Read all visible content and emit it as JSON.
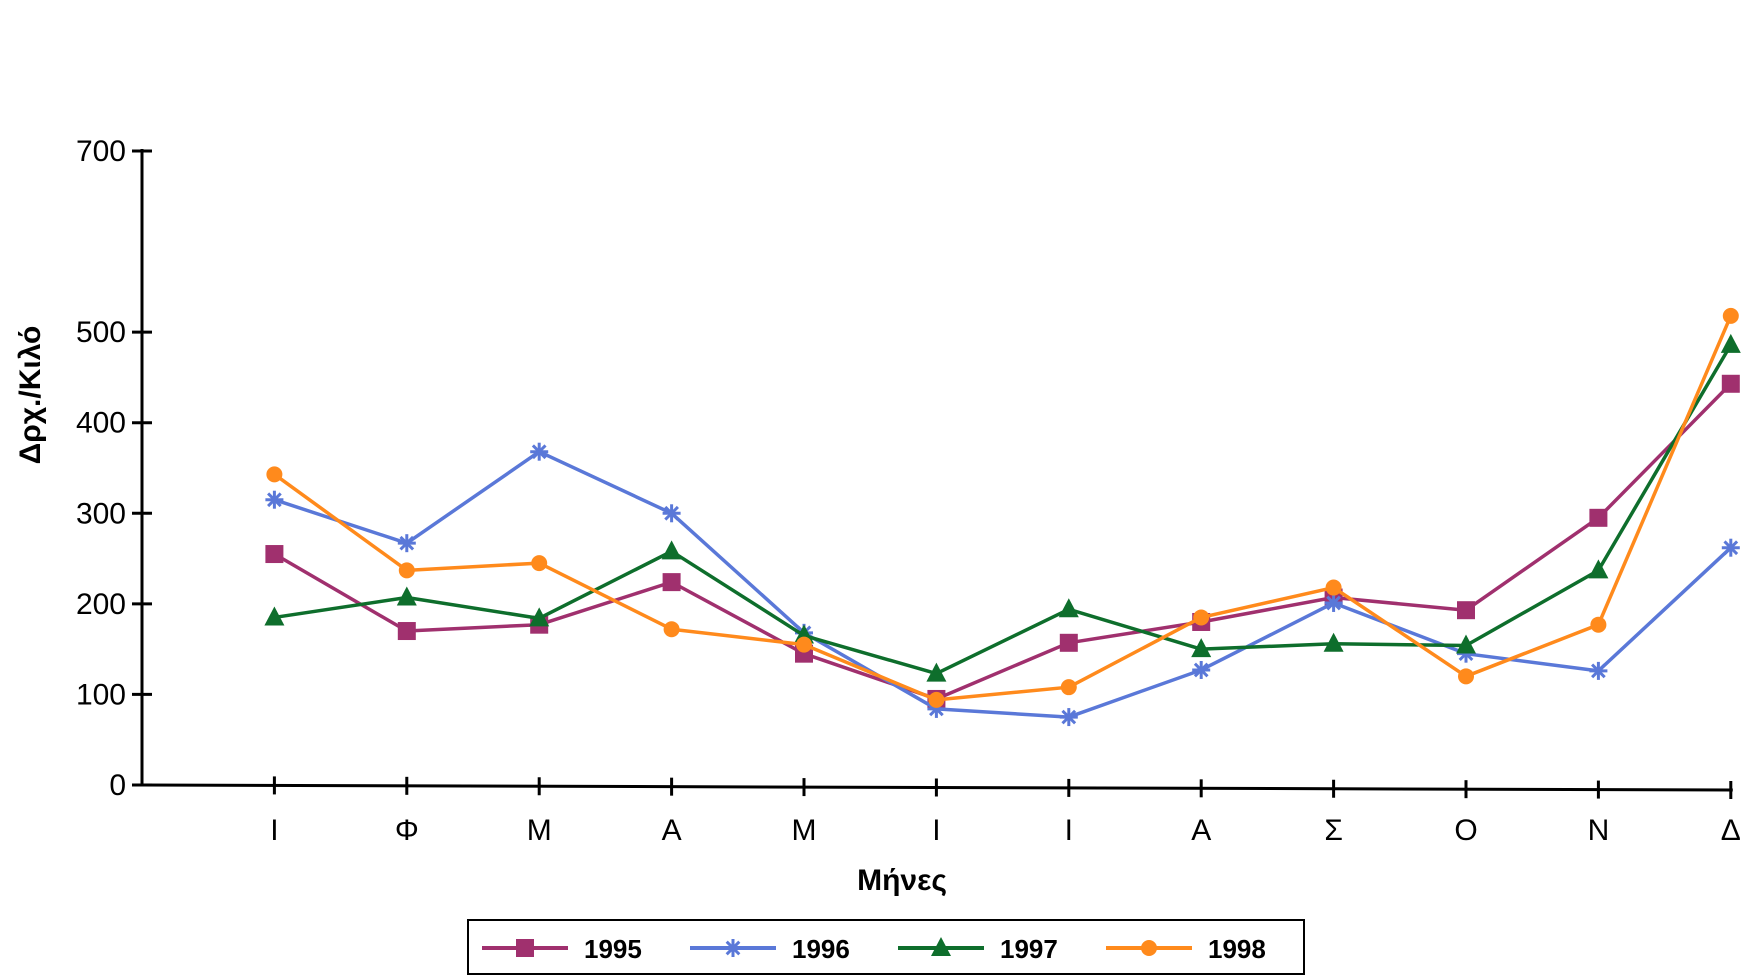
{
  "chart_data": {
    "type": "line",
    "title": "",
    "xlabel": "Μήνες",
    "ylabel": "Δρχ./Κιλό",
    "ylim": [
      0,
      700
    ],
    "yticks": [
      0,
      100,
      200,
      300,
      400,
      500,
      700
    ],
    "grid": false,
    "legend_position": "bottom",
    "categories": [
      "Ι",
      "Φ",
      "Μ",
      "Α",
      "Μ",
      "Ι",
      "Ι",
      "Α",
      "Σ",
      "Ο",
      "Ν",
      "Δ"
    ],
    "series": [
      {
        "name": "1995",
        "color": "#a0306e",
        "marker": "square",
        "values": [
          255,
          170,
          177,
          224,
          145,
          95,
          157,
          180,
          207,
          193,
          295,
          443
        ]
      },
      {
        "name": "1996",
        "color": "#5a78d8",
        "marker": "star",
        "values": [
          315,
          267,
          368,
          300,
          168,
          84,
          75,
          127,
          201,
          145,
          126,
          262
        ]
      },
      {
        "name": "1997",
        "color": "#0e6e2c",
        "marker": "triangle",
        "values": [
          185,
          207,
          184,
          258,
          165,
          123,
          194,
          150,
          156,
          154,
          237,
          486
        ]
      },
      {
        "name": "1998",
        "color": "#ff8a1c",
        "marker": "circle",
        "values": [
          343,
          237,
          245,
          172,
          155,
          94,
          108,
          185,
          218,
          120,
          177,
          518
        ]
      }
    ]
  }
}
